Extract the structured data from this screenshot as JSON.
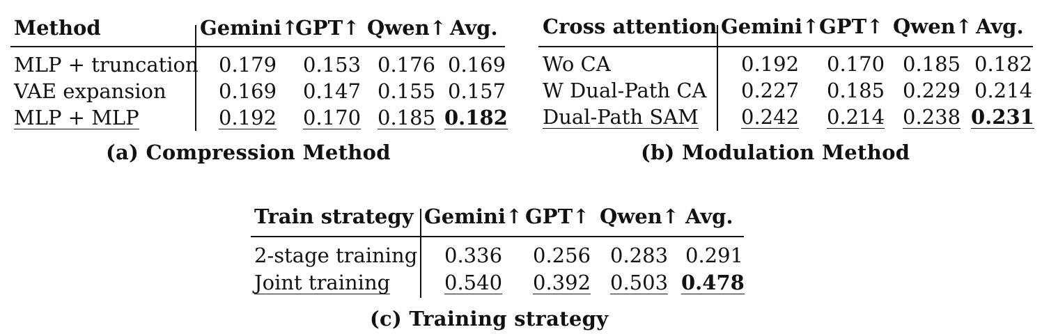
{
  "tables": [
    {
      "headers": [
        "Method",
        "Gemini↑",
        "GPT↑",
        "Qwen↑",
        "Avg."
      ],
      "rows": [
        {
          "label": "MLP + truncation",
          "values": [
            "0.179",
            "0.153",
            "0.176",
            "0.169"
          ]
        },
        {
          "label": "VAE expansion",
          "values": [
            "0.169",
            "0.147",
            "0.155",
            "0.157"
          ]
        },
        {
          "label": "MLP + MLP",
          "values": [
            "0.192",
            "0.170",
            "0.185",
            "0.182"
          ]
        }
      ],
      "caption": "(a) Compression Method"
    },
    {
      "headers": [
        "Cross attention",
        "Gemini↑",
        "GPT↑",
        "Qwen↑",
        "Avg."
      ],
      "rows": [
        {
          "label": "Wo CA",
          "values": [
            "0.192",
            "0.170",
            "0.185",
            "0.182"
          ]
        },
        {
          "label": "W Dual-Path CA",
          "values": [
            "0.227",
            "0.185",
            "0.229",
            "0.214"
          ]
        },
        {
          "label": "Dual-Path SAM",
          "values": [
            "0.242",
            "0.214",
            "0.238",
            "0.231"
          ]
        }
      ],
      "caption": "(b) Modulation Method"
    },
    {
      "headers": [
        "Train strategy",
        "Gemini↑",
        "GPT↑",
        "Qwen↑",
        "Avg."
      ],
      "rows": [
        {
          "label": "2-stage training",
          "values": [
            "0.336",
            "0.256",
            "0.283",
            "0.291"
          ]
        },
        {
          "label": "Joint training",
          "values": [
            "0.540",
            "0.392",
            "0.503",
            "0.478"
          ]
        }
      ],
      "caption": "(c) Training strategy"
    }
  ]
}
